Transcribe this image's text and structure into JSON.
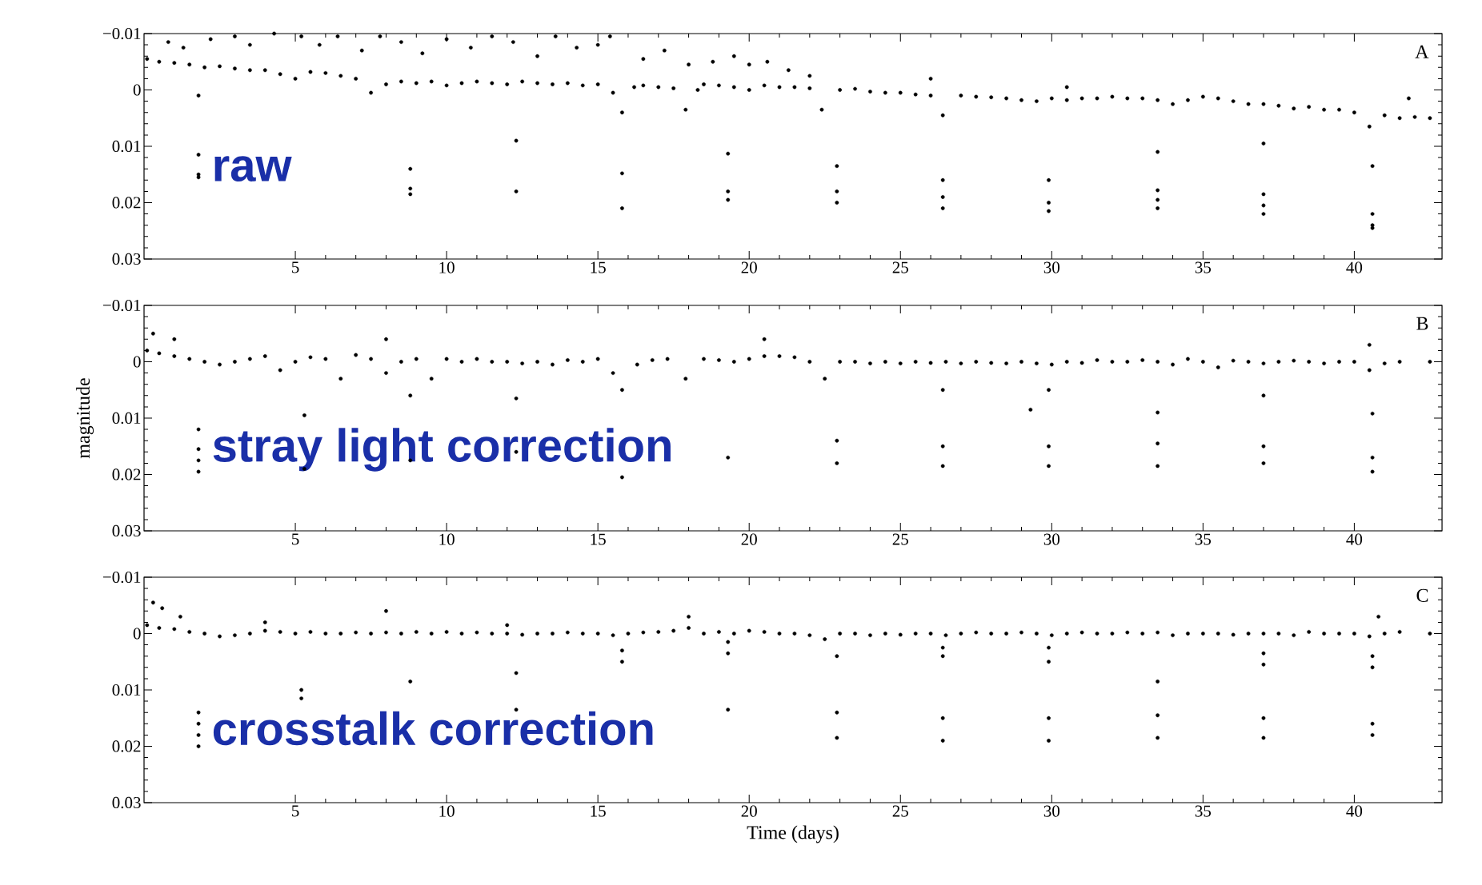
{
  "chart_data": [
    {
      "type": "scatter",
      "color": "#000000",
      "xlim": [
        0,
        42.9
      ],
      "ylim": [
        0.03,
        -0.01
      ],
      "xticks": [
        5,
        10,
        15,
        20,
        25,
        30,
        35,
        40
      ],
      "yticks": [
        {
          "value": -0.01,
          "label": "−0.01"
        },
        {
          "value": 0,
          "label": "0"
        },
        {
          "value": 0.01,
          "label": "0.01"
        },
        {
          "value": 0.02,
          "label": "0.02"
        },
        {
          "value": 0.03,
          "label": "0.03"
        }
      ],
      "annotations": [
        "A",
        "raw"
      ],
      "x": [
        0.1,
        0.5,
        1.0,
        1.5,
        2.0,
        2.5,
        3.0,
        3.5,
        4.0,
        4.5,
        5.0,
        5.5,
        6.0,
        6.5,
        7.0,
        7.5,
        8.0,
        8.5,
        9.0,
        9.5,
        10.0,
        10.5,
        11.0,
        11.5,
        12.0,
        12.5,
        13.0,
        13.5,
        14.0,
        14.5,
        15.0,
        15.5,
        15.8,
        16.2,
        16.5,
        17.0,
        17.5,
        17.9,
        18.3,
        18.5,
        19.0,
        19.5,
        20.0,
        20.5,
        21.0,
        21.5,
        22.0,
        22.4,
        23.0,
        23.5,
        24.0,
        24.5,
        25.0,
        25.5,
        26.0,
        26.4,
        27.0,
        27.5,
        28.0,
        28.5,
        29.0,
        29.5,
        30.0,
        30.5,
        31.0,
        31.5,
        32.0,
        32.5,
        33.0,
        33.5,
        34.0,
        34.5,
        35.0,
        35.5,
        36.0,
        36.5,
        37.0,
        37.5,
        38.0,
        38.5,
        39.0,
        39.5,
        40.0,
        40.5,
        41.0,
        41.5,
        42.0,
        42.5,
        0.8,
        1.3,
        2.2,
        3.0,
        3.5,
        4.3,
        5.2,
        5.8,
        6.4,
        7.2,
        7.8,
        8.5,
        9.2,
        10.0,
        10.8,
        11.5,
        12.2,
        13.0,
        13.6,
        14.3,
        15.0,
        15.4,
        16.5,
        17.2,
        18.0,
        18.8,
        19.5,
        20.0,
        20.6,
        21.3,
        22.0,
        26.0,
        30.5,
        41.8,
        1.8,
        1.8,
        1.8,
        1.8,
        8.8,
        8.8,
        8.8,
        12.3,
        12.3,
        15.8,
        15.8,
        19.3,
        19.3,
        19.3,
        22.9,
        22.9,
        22.9,
        26.4,
        26.4,
        26.4,
        29.9,
        29.9,
        29.9,
        33.5,
        33.5,
        33.5,
        33.5,
        37.0,
        37.0,
        37.0,
        37.0,
        40.6,
        40.6,
        40.6,
        40.6
      ],
      "values": [
        -0.0055,
        -0.005,
        -0.0048,
        -0.0045,
        -0.004,
        -0.0042,
        -0.0038,
        -0.0035,
        -0.0035,
        -0.0028,
        -0.002,
        -0.0032,
        -0.003,
        -0.0025,
        -0.002,
        0.0005,
        -0.001,
        -0.0015,
        -0.0012,
        -0.0015,
        -0.0008,
        -0.0012,
        -0.0015,
        -0.0012,
        -0.001,
        -0.0015,
        -0.0012,
        -0.001,
        -0.0012,
        -0.0008,
        -0.001,
        0.0005,
        0.004,
        -0.0005,
        -0.0008,
        -0.0005,
        -0.0003,
        0.0035,
        0.0,
        -0.001,
        -0.0008,
        -0.0005,
        0.0,
        -0.0008,
        -0.0005,
        -0.0005,
        -0.0003,
        0.0035,
        0.0,
        -0.0002,
        0.0003,
        0.0005,
        0.0005,
        0.0008,
        0.001,
        0.0045,
        0.001,
        0.0012,
        0.0013,
        0.0015,
        0.0018,
        0.002,
        0.0015,
        0.0018,
        0.0015,
        0.0015,
        0.0012,
        0.0015,
        0.0015,
        0.0018,
        0.0025,
        0.0018,
        0.0012,
        0.0015,
        0.002,
        0.0025,
        0.0025,
        0.0028,
        0.0033,
        0.003,
        0.0035,
        0.0035,
        0.004,
        0.0065,
        0.0045,
        0.005,
        0.0048,
        0.005,
        -0.0085,
        -0.0075,
        -0.009,
        -0.0095,
        -0.008,
        -0.01,
        -0.0095,
        -0.008,
        -0.0095,
        -0.007,
        -0.0095,
        -0.0085,
        -0.0065,
        -0.009,
        -0.0075,
        -0.0095,
        -0.0085,
        -0.006,
        -0.0095,
        -0.0075,
        -0.008,
        -0.0095,
        -0.0055,
        -0.007,
        -0.0045,
        -0.005,
        -0.006,
        -0.0045,
        -0.005,
        -0.0035,
        -0.0025,
        -0.002,
        -0.0005,
        0.0015,
        0.001,
        0.0115,
        0.015,
        0.0155,
        0.014,
        0.0175,
        0.0185,
        0.009,
        0.018,
        0.0148,
        0.021,
        0.0113,
        0.018,
        0.0195,
        0.0135,
        0.018,
        0.02,
        0.016,
        0.019,
        0.021,
        0.016,
        0.02,
        0.0215,
        0.011,
        0.0178,
        0.0195,
        0.021,
        0.0095,
        0.0185,
        0.0205,
        0.022,
        0.0135,
        0.022,
        0.024,
        0.0245
      ]
    },
    {
      "type": "scatter",
      "color": "#000000",
      "xlim": [
        0,
        42.9
      ],
      "ylim": [
        0.03,
        -0.01
      ],
      "ylabel": "magnitude",
      "xticks": [
        5,
        10,
        15,
        20,
        25,
        30,
        35,
        40
      ],
      "yticks": [
        {
          "value": -0.01,
          "label": "−0.01"
        },
        {
          "value": 0,
          "label": "0"
        },
        {
          "value": 0.01,
          "label": "0.01"
        },
        {
          "value": 0.02,
          "label": "0.02"
        },
        {
          "value": 0.03,
          "label": "0.03"
        }
      ],
      "annotations": [
        "B",
        "stray light correction"
      ],
      "x": [
        0.1,
        0.5,
        1.0,
        1.5,
        2.0,
        2.5,
        3.0,
        3.5,
        4.0,
        4.5,
        5.0,
        5.5,
        6.0,
        6.5,
        7.0,
        7.5,
        8.0,
        8.5,
        9.0,
        9.5,
        10.0,
        10.5,
        11.0,
        11.5,
        12.0,
        12.5,
        13.0,
        13.5,
        14.0,
        14.5,
        15.0,
        15.5,
        15.8,
        16.3,
        16.8,
        17.3,
        17.9,
        18.5,
        19.0,
        19.5,
        20.0,
        20.5,
        21.0,
        21.5,
        22.0,
        22.5,
        23.0,
        23.5,
        24.0,
        24.5,
        25.0,
        25.5,
        26.0,
        26.5,
        27.0,
        27.5,
        28.0,
        28.5,
        29.0,
        29.5,
        30.0,
        30.5,
        31.0,
        31.5,
        32.0,
        32.5,
        33.0,
        33.5,
        34.0,
        34.5,
        35.0,
        35.5,
        36.0,
        36.5,
        37.0,
        37.5,
        38.0,
        38.5,
        39.0,
        39.5,
        40.0,
        40.5,
        41.0,
        41.5,
        42.5,
        0.3,
        1.0,
        8.0,
        20.5,
        40.5,
        1.8,
        1.8,
        1.8,
        1.8,
        5.3,
        5.3,
        8.8,
        8.8,
        12.3,
        12.3,
        15.8,
        19.3,
        22.9,
        22.9,
        26.4,
        26.4,
        26.4,
        29.3,
        29.9,
        29.9,
        29.9,
        33.5,
        33.5,
        33.5,
        37.0,
        37.0,
        37.0,
        40.6,
        40.6,
        40.6
      ],
      "values": [
        -0.002,
        -0.0015,
        -0.001,
        -0.0005,
        0.0,
        0.0005,
        0.0,
        -0.0005,
        -0.001,
        0.0015,
        0.0,
        -0.0008,
        -0.0005,
        0.003,
        -0.0012,
        -0.0005,
        0.002,
        0.0,
        -0.0005,
        0.003,
        -0.0005,
        0.0,
        -0.0005,
        0.0,
        0.0,
        0.0003,
        0.0,
        0.0005,
        -0.0003,
        0.0,
        -0.0005,
        0.002,
        0.005,
        0.0005,
        -0.0003,
        -0.0005,
        0.003,
        -0.0005,
        -0.0003,
        0.0,
        -0.0005,
        -0.001,
        -0.001,
        -0.0008,
        0.0,
        0.003,
        0.0,
        0.0,
        0.0003,
        0.0,
        0.0003,
        0.0,
        0.0002,
        0.0,
        0.0003,
        0.0,
        0.0002,
        0.0003,
        0.0,
        0.0003,
        0.0005,
        0.0,
        0.0002,
        -0.0003,
        0.0,
        0.0,
        -0.0003,
        0.0,
        0.0005,
        -0.0005,
        0.0,
        0.001,
        -0.0002,
        0.0,
        0.0003,
        0.0,
        -0.0002,
        0.0,
        0.0003,
        0.0,
        0.0,
        0.0015,
        0.0003,
        0.0,
        0.0,
        -0.005,
        -0.004,
        -0.004,
        -0.004,
        -0.003,
        0.012,
        0.0155,
        0.0175,
        0.0195,
        0.0095,
        0.019,
        0.006,
        0.0175,
        0.0065,
        0.016,
        0.0205,
        0.017,
        0.014,
        0.018,
        0.005,
        0.015,
        0.0185,
        0.0085,
        0.005,
        0.015,
        0.0185,
        0.009,
        0.0145,
        0.0185,
        0.006,
        0.015,
        0.018,
        0.0092,
        0.017,
        0.0195
      ]
    },
    {
      "type": "scatter",
      "color": "#000000",
      "xlim": [
        0,
        42.9
      ],
      "ylim": [
        0.03,
        -0.01
      ],
      "xlabel": "Time (days)",
      "xticks": [
        5,
        10,
        15,
        20,
        25,
        30,
        35,
        40
      ],
      "yticks": [
        {
          "value": -0.01,
          "label": "−0.01"
        },
        {
          "value": 0,
          "label": "0"
        },
        {
          "value": 0.01,
          "label": "0.01"
        },
        {
          "value": 0.02,
          "label": "0.02"
        },
        {
          "value": 0.03,
          "label": "0.03"
        }
      ],
      "annotations": [
        "C",
        "crosstalk correction"
      ],
      "x": [
        0.1,
        0.5,
        1.0,
        1.5,
        2.0,
        2.5,
        3.0,
        3.5,
        4.0,
        4.5,
        5.0,
        5.5,
        6.0,
        6.5,
        7.0,
        7.5,
        8.0,
        8.5,
        9.0,
        9.5,
        10.0,
        10.5,
        11.0,
        11.5,
        12.0,
        12.5,
        13.0,
        13.5,
        14.0,
        14.5,
        15.0,
        15.5,
        16.0,
        16.5,
        17.0,
        17.5,
        18.0,
        18.5,
        19.0,
        19.5,
        20.0,
        20.5,
        21.0,
        21.5,
        22.0,
        22.5,
        23.0,
        23.5,
        24.0,
        24.5,
        25.0,
        25.5,
        26.0,
        26.5,
        27.0,
        27.5,
        28.0,
        28.5,
        29.0,
        29.5,
        30.0,
        30.5,
        31.0,
        31.5,
        32.0,
        32.5,
        33.0,
        33.5,
        34.0,
        34.5,
        35.0,
        35.5,
        36.0,
        36.5,
        37.0,
        37.5,
        38.0,
        38.5,
        39.0,
        39.5,
        40.0,
        40.5,
        41.0,
        41.5,
        42.5,
        0.3,
        0.6,
        1.2,
        4.0,
        8.0,
        12.0,
        18.0,
        40.8,
        1.8,
        1.8,
        1.8,
        1.8,
        5.2,
        5.2,
        8.8,
        12.3,
        12.3,
        15.8,
        15.8,
        19.3,
        19.3,
        19.3,
        22.9,
        22.9,
        22.9,
        26.4,
        26.4,
        26.4,
        26.4,
        29.9,
        29.9,
        29.9,
        29.9,
        33.5,
        33.5,
        33.5,
        37.0,
        37.0,
        37.0,
        37.0,
        40.6,
        40.6,
        40.6,
        40.6
      ],
      "values": [
        -0.0015,
        -0.001,
        -0.0008,
        -0.0003,
        0.0,
        0.0005,
        0.0003,
        0.0,
        -0.0005,
        -0.0003,
        0.0,
        -0.0003,
        0.0,
        0.0,
        -0.0002,
        0.0,
        -0.0002,
        0.0,
        -0.0003,
        0.0,
        -0.0003,
        0.0,
        -0.0002,
        0.0,
        0.0,
        0.0002,
        0.0,
        0.0,
        -0.0002,
        0.0,
        0.0,
        0.0003,
        0.0,
        -0.0002,
        -0.0003,
        -0.0005,
        -0.001,
        0.0,
        -0.0003,
        0.0,
        -0.0005,
        -0.0003,
        0.0,
        0.0,
        0.0003,
        0.001,
        0.0,
        0.0,
        0.0003,
        0.0,
        0.0002,
        0.0,
        0.0,
        0.0003,
        0.0,
        -0.0002,
        0.0,
        0.0,
        -0.0002,
        0.0,
        0.0003,
        0.0,
        -0.0002,
        0.0,
        0.0,
        -0.0002,
        0.0,
        -0.0002,
        0.0003,
        0.0,
        0.0,
        0.0,
        0.0002,
        0.0,
        0.0,
        0.0,
        0.0003,
        -0.0003,
        0.0,
        0.0,
        0.0,
        0.0005,
        0.0,
        -0.0003,
        0.0,
        -0.0055,
        -0.0045,
        -0.003,
        -0.002,
        -0.004,
        -0.0015,
        -0.003,
        -0.003,
        0.014,
        0.016,
        0.018,
        0.02,
        0.01,
        0.0115,
        0.0085,
        0.007,
        0.0135,
        0.003,
        0.005,
        0.0015,
        0.0035,
        0.0135,
        0.004,
        0.014,
        0.0185,
        0.0025,
        0.004,
        0.015,
        0.019,
        0.0025,
        0.005,
        0.015,
        0.019,
        0.0085,
        0.0145,
        0.0185,
        0.0035,
        0.0055,
        0.015,
        0.0185,
        0.004,
        0.006,
        0.016,
        0.018
      ]
    }
  ]
}
